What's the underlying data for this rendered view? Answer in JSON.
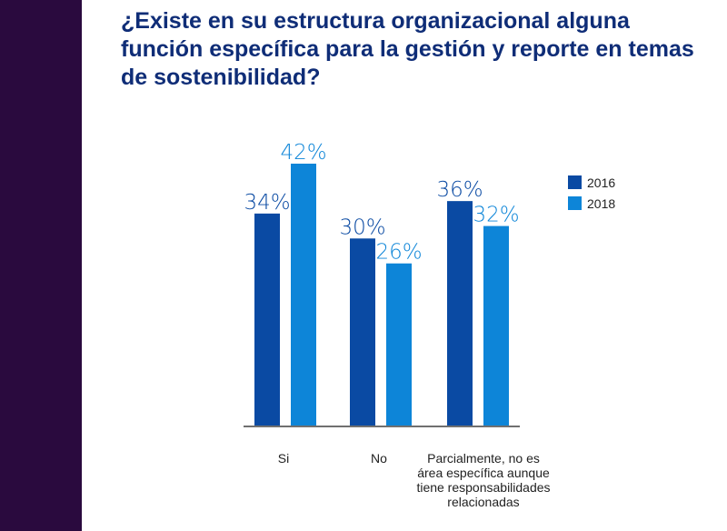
{
  "title": "¿Existe en su estructura organizacional alguna función específica para la gestión y reporte en temas de sostenibilidad?",
  "colors": {
    "sidebar": "#2a0a3e",
    "title": "#0f2d77",
    "series_2016": "#0a4aa3",
    "series_2018": "#0d85d8"
  },
  "chart_data": {
    "type": "bar",
    "categories": [
      [
        "Si"
      ],
      [
        "No"
      ],
      [
        "Parcialmente, no es",
        "área específica aunque",
        "tiene responsabilidades",
        "relacionadas"
      ]
    ],
    "series": [
      {
        "name": "2016",
        "values": [
          34,
          30,
          36
        ],
        "labels": [
          "34%",
          "30%",
          "36%"
        ]
      },
      {
        "name": "2018",
        "values": [
          42,
          26,
          32
        ],
        "labels": [
          "42%",
          "26%",
          "32%"
        ]
      }
    ],
    "ylim": [
      0,
      55
    ],
    "legend_position": "top-right",
    "grid": false
  }
}
